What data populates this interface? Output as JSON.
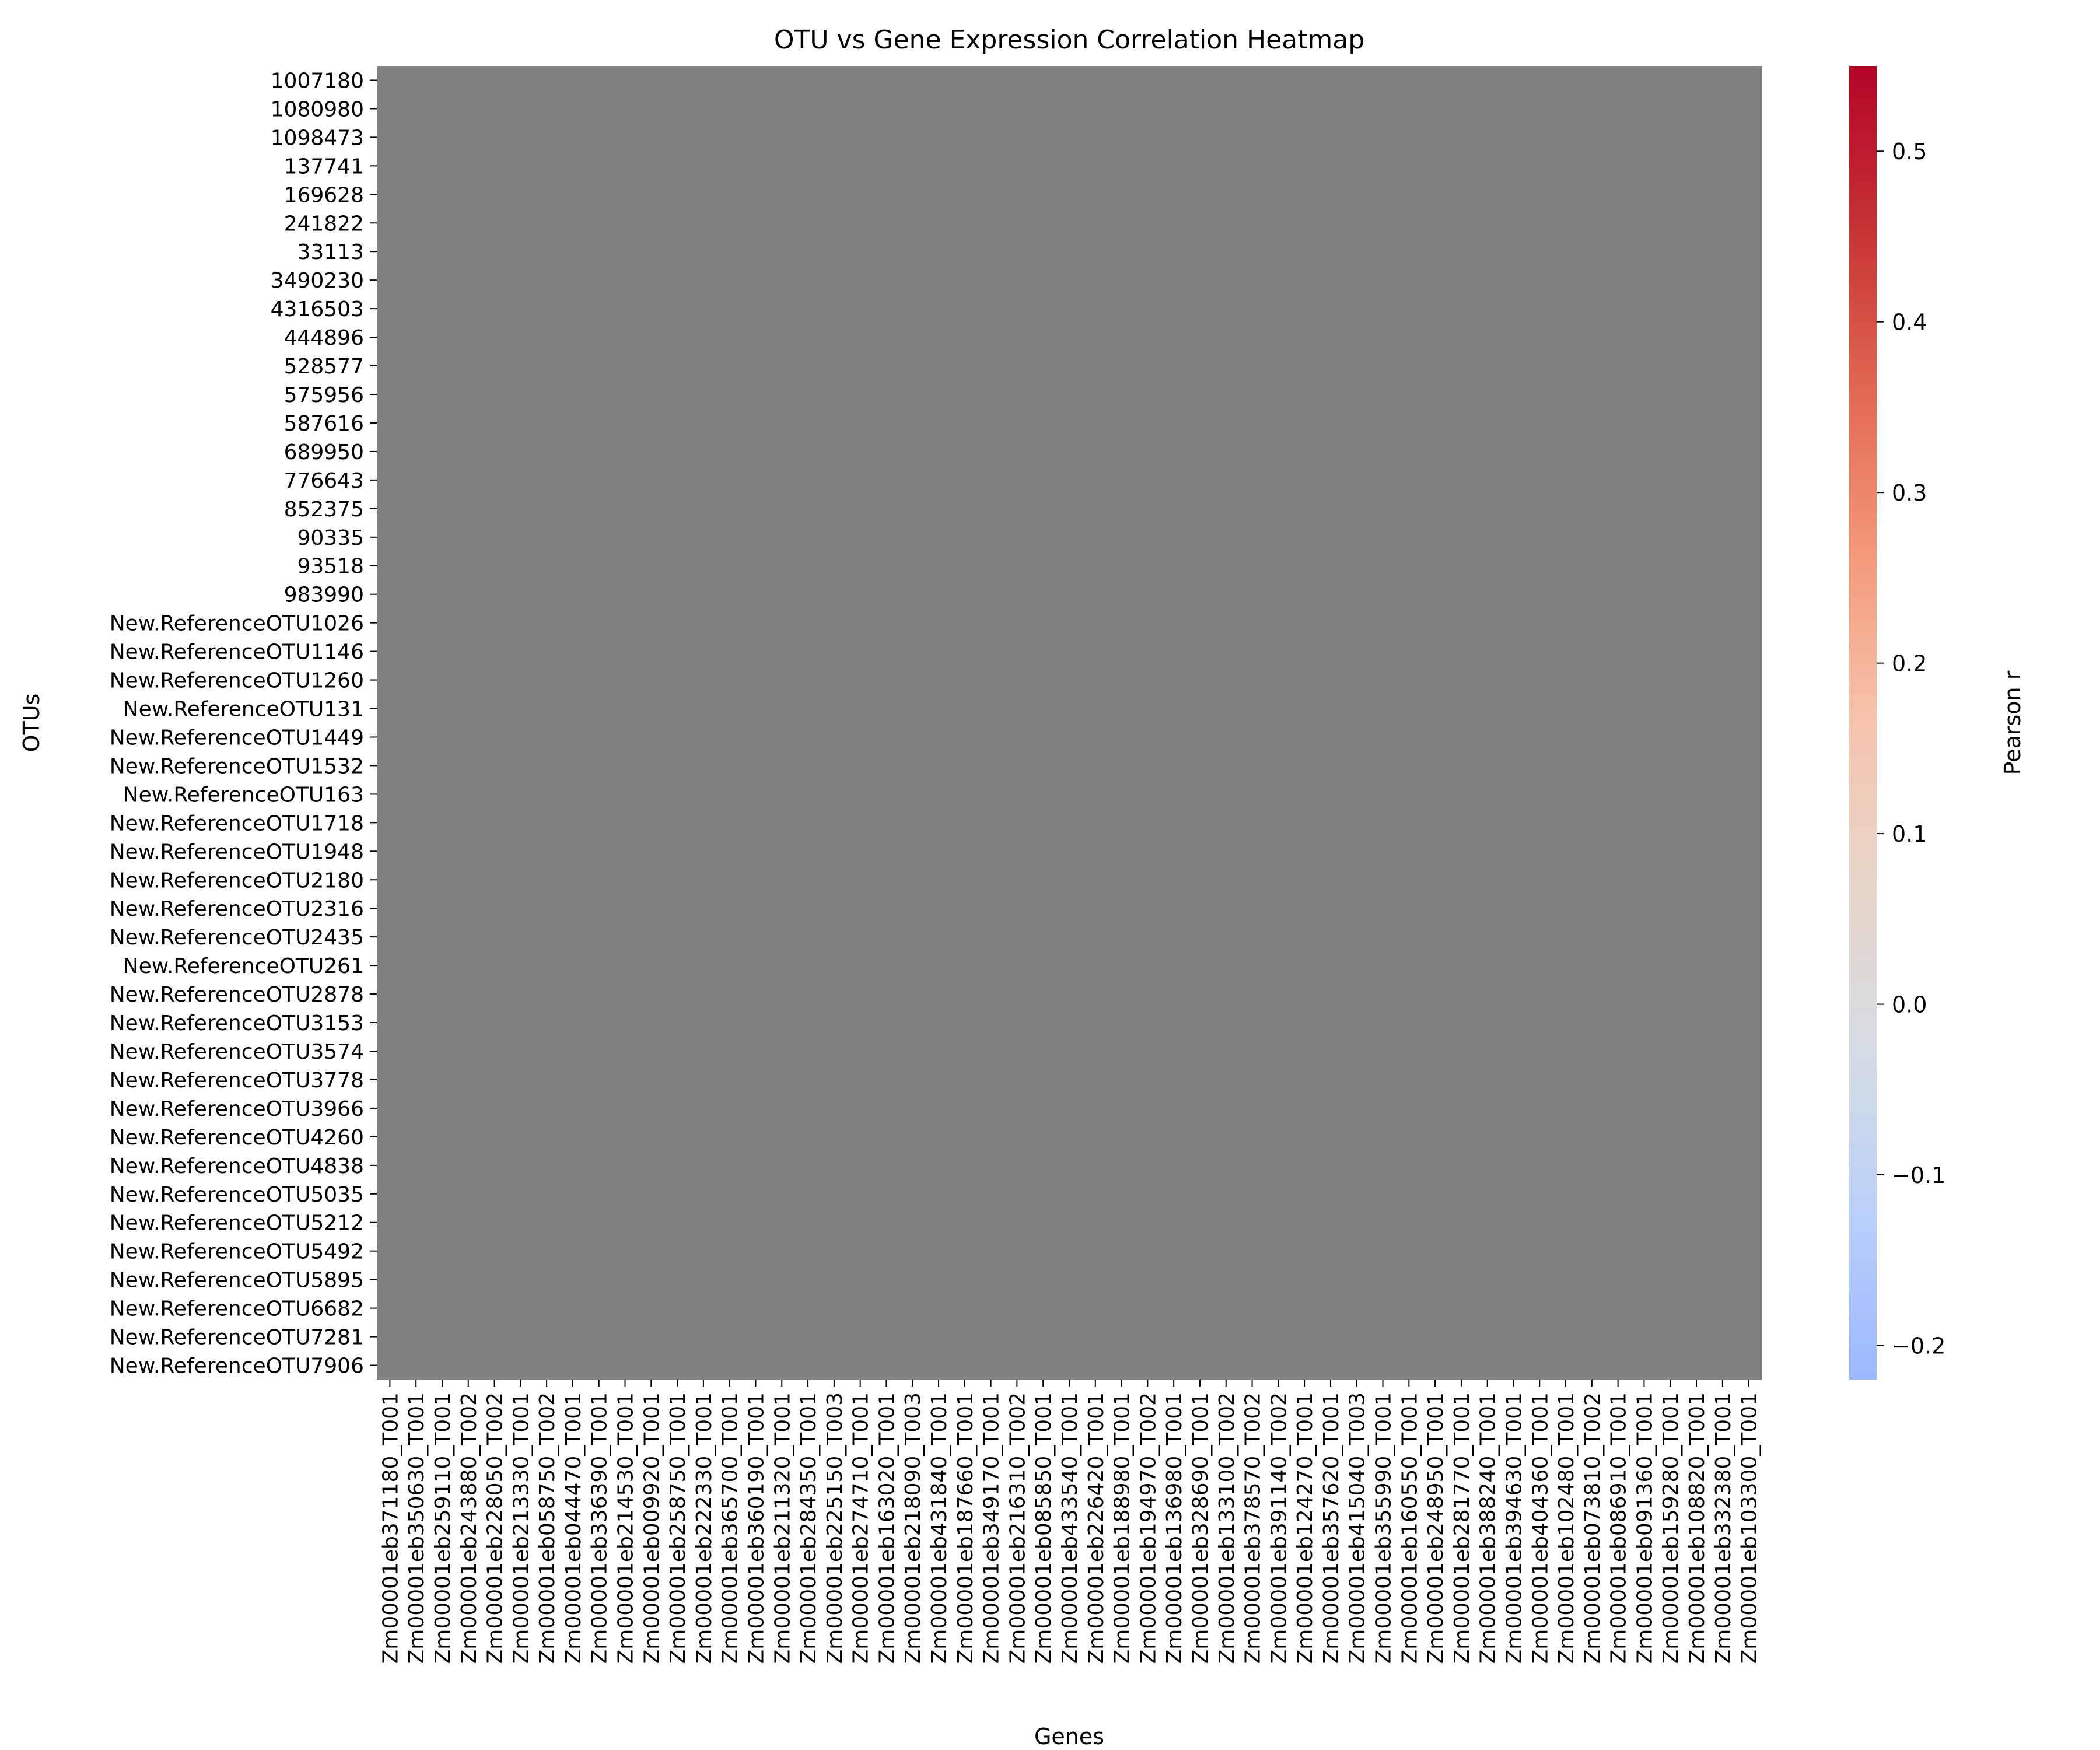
{
  "chart_data": {
    "type": "heatmap",
    "title": "OTU vs Gene Expression Correlation Heatmap",
    "xlabel": "Genes",
    "ylabel": "OTUs",
    "y_categories": [
      "1007180",
      "1080980",
      "1098473",
      "137741",
      "169628",
      "241822",
      "33113",
      "3490230",
      "4316503",
      "444896",
      "528577",
      "575956",
      "587616",
      "689950",
      "776643",
      "852375",
      "90335",
      "93518",
      "983990",
      "New.ReferenceOTU1026",
      "New.ReferenceOTU1146",
      "New.ReferenceOTU1260",
      "New.ReferenceOTU131",
      "New.ReferenceOTU1449",
      "New.ReferenceOTU1532",
      "New.ReferenceOTU163",
      "New.ReferenceOTU1718",
      "New.ReferenceOTU1948",
      "New.ReferenceOTU2180",
      "New.ReferenceOTU2316",
      "New.ReferenceOTU2435",
      "New.ReferenceOTU261",
      "New.ReferenceOTU2878",
      "New.ReferenceOTU3153",
      "New.ReferenceOTU3574",
      "New.ReferenceOTU3778",
      "New.ReferenceOTU3966",
      "New.ReferenceOTU4260",
      "New.ReferenceOTU4838",
      "New.ReferenceOTU5035",
      "New.ReferenceOTU5212",
      "New.ReferenceOTU5492",
      "New.ReferenceOTU5895",
      "New.ReferenceOTU6682",
      "New.ReferenceOTU7281",
      "New.ReferenceOTU7906"
    ],
    "x_categories": [
      "Zm00001eb371180_T001",
      "Zm00001eb350630_T001",
      "Zm00001eb259110_T001",
      "Zm00001eb243880_T002",
      "Zm00001eb228050_T002",
      "Zm00001eb213330_T001",
      "Zm00001eb058750_T002",
      "Zm00001eb044470_T001",
      "Zm00001eb336390_T001",
      "Zm00001eb214530_T001",
      "Zm00001eb009920_T001",
      "Zm00001eb258750_T001",
      "Zm00001eb222330_T001",
      "Zm00001eb365700_T001",
      "Zm00001eb360190_T001",
      "Zm00001eb211320_T001",
      "Zm00001eb284350_T001",
      "Zm00001eb225150_T003",
      "Zm00001eb274710_T001",
      "Zm00001eb163020_T001",
      "Zm00001eb218090_T003",
      "Zm00001eb431840_T001",
      "Zm00001eb187660_T001",
      "Zm00001eb349170_T001",
      "Zm00001eb216310_T002",
      "Zm00001eb085850_T001",
      "Zm00001eb433540_T001",
      "Zm00001eb226420_T001",
      "Zm00001eb188980_T001",
      "Zm00001eb194970_T002",
      "Zm00001eb136980_T001",
      "Zm00001eb328690_T001",
      "Zm00001eb133100_T002",
      "Zm00001eb378570_T002",
      "Zm00001eb391140_T002",
      "Zm00001eb124270_T001",
      "Zm00001eb357620_T001",
      "Zm00001eb415040_T003",
      "Zm00001eb355990_T001",
      "Zm00001eb160550_T001",
      "Zm00001eb248950_T001",
      "Zm00001eb281770_T001",
      "Zm00001eb388240_T001",
      "Zm00001eb394630_T001",
      "Zm00001eb404360_T001",
      "Zm00001eb102480_T001",
      "Zm00001eb073810_T002",
      "Zm00001eb086910_T001",
      "Zm00001eb091360_T001",
      "Zm00001eb159280_T001",
      "Zm00001eb108820_T001",
      "Zm00001eb332380_T001",
      "Zm00001eb103300_T001"
    ],
    "values_note": "All cells are NaN (rendered as uniform gray)",
    "cell_color": "#808080",
    "colorbar": {
      "label": "Pearson r",
      "vmin": -0.22,
      "vmax": 0.55,
      "ticks": [
        -0.2,
        -0.1,
        0.0,
        0.1,
        0.2,
        0.3,
        0.4,
        0.5
      ],
      "tick_labels": [
        "−0.2",
        "−0.1",
        "0.0",
        "0.1",
        "0.2",
        "0.3",
        "0.4",
        "0.5"
      ],
      "colormap": "coolwarm",
      "stops": [
        "#9ab8fe",
        "#b9d0f9",
        "#d6dce4",
        "#e7d6ca",
        "#f5c4ac",
        "#f49a7b",
        "#e26952",
        "#c53334",
        "#b40426"
      ]
    },
    "grid": false,
    "legend": "colorbar-right"
  }
}
